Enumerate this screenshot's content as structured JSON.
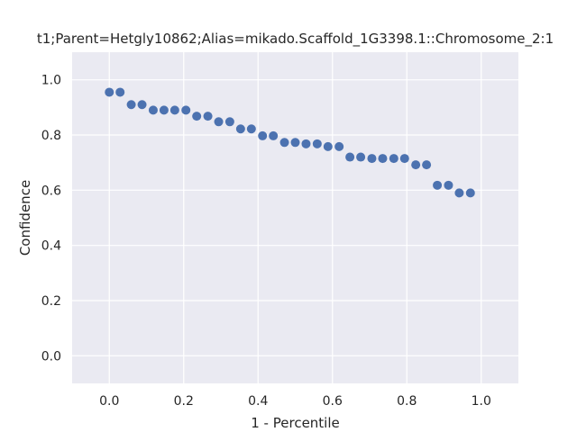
{
  "chart_data": {
    "type": "scatter",
    "title": "t1;Parent=Hetgly10862;Alias=mikado.Scaffold_1G3398.1::Chromosome_2:1",
    "xlabel": "1 - Percentile",
    "ylabel": "Confidence",
    "xlim": [
      -0.1,
      1.1
    ],
    "ylim": [
      -0.1,
      1.1
    ],
    "xticks": [
      "0.0",
      "0.2",
      "0.4",
      "0.6",
      "0.8",
      "1.0"
    ],
    "yticks": [
      "0.0",
      "0.2",
      "0.4",
      "0.6",
      "0.8",
      "1.0"
    ],
    "grid": true,
    "point_color": "#4c72b0",
    "background_color": "#eaeaf2",
    "x": [
      0.0,
      0.029,
      0.059,
      0.088,
      0.118,
      0.147,
      0.176,
      0.206,
      0.235,
      0.265,
      0.294,
      0.324,
      0.353,
      0.382,
      0.412,
      0.441,
      0.471,
      0.5,
      0.529,
      0.559,
      0.588,
      0.618,
      0.647,
      0.676,
      0.706,
      0.735,
      0.765,
      0.794,
      0.824,
      0.853,
      0.882,
      0.912,
      0.941,
      0.971
    ],
    "y": [
      0.955,
      0.955,
      0.91,
      0.91,
      0.89,
      0.89,
      0.89,
      0.89,
      0.868,
      0.868,
      0.848,
      0.848,
      0.822,
      0.822,
      0.797,
      0.797,
      0.773,
      0.773,
      0.768,
      0.768,
      0.758,
      0.758,
      0.72,
      0.72,
      0.715,
      0.715,
      0.715,
      0.715,
      0.692,
      0.692,
      0.618,
      0.618,
      0.59,
      0.59
    ]
  }
}
